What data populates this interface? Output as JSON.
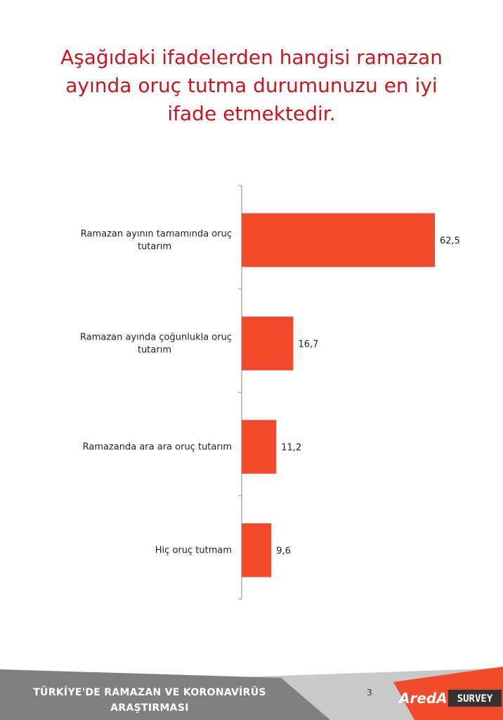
{
  "title": "Aşağıdaki ifadelerden hangisi ramazan\nayında oruç tutma durumunuzu en iyi\nifade etmektedir.",
  "chart_data": {
    "type": "bar",
    "orientation": "horizontal",
    "title": "Aşağıdaki ifadelerden hangisi ramazan ayında oruç tutma durumunuzu en iyi ifade etmektedir.",
    "categories": [
      [
        "Ramazan ayının tamamında oruç",
        "tutarım"
      ],
      [
        "Ramazan ayında çoğunlukla oruç",
        "tutarım"
      ],
      [
        "Ramazanda ara ara oruç tutarım"
      ],
      [
        "Hiç oruç tutmam"
      ]
    ],
    "values": [
      62.5,
      16.7,
      11.2,
      9.6
    ],
    "value_labels": [
      "62,5",
      "16,7",
      "11,2",
      "9,6"
    ],
    "xlim": [
      0,
      100
    ],
    "bar_color": "#f04a2a",
    "grid": false,
    "legend": "none"
  },
  "footer": {
    "text": "TÜRKİYE'DE  RAMAZAN VE KORONAVİRÜS\nARAŞTIRMASI",
    "page_number": "3",
    "logo_text_left": "AredA",
    "logo_text_right": "SURVEY",
    "band_color": "#808080",
    "accent_color": "#f04a2a"
  }
}
